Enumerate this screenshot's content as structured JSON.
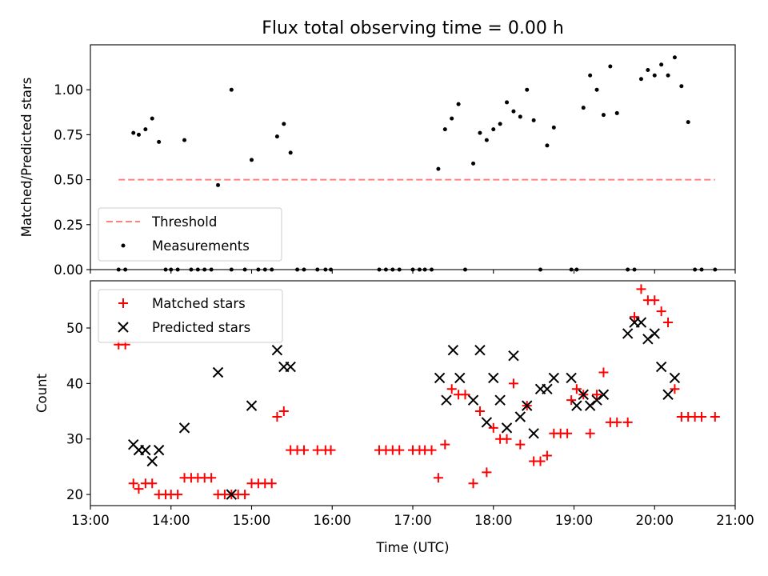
{
  "chart_data": [
    {
      "type": "scatter",
      "title": "Flux total observing time = 0.00 h",
      "xlabel": "",
      "ylabel": "Matched/Predicted stars",
      "xlim": [
        "13:00",
        "21:00"
      ],
      "ylim": [
        0,
        1.25
      ],
      "yticks": [
        "0.00",
        "0.25",
        "0.50",
        "0.75",
        "1.00"
      ],
      "ytick_values": [
        0,
        0.25,
        0.5,
        0.75,
        1.0
      ],
      "xticks": [
        "13:00",
        "14:00",
        "15:00",
        "16:00",
        "17:00",
        "18:00",
        "19:00",
        "20:00",
        "21:00"
      ],
      "show_xtick_labels": false,
      "grid": false,
      "legend": "lower-left",
      "threshold": {
        "name": "Threshold",
        "value": 0.5,
        "x": [
          "13:21",
          "20:45"
        ],
        "color": "#ff8080"
      },
      "series": [
        {
          "name": "Measurements",
          "marker": "dot",
          "color": "#000000",
          "x": [
            "13:32",
            "13:36",
            "13:41",
            "13:46",
            "13:51",
            "14:10",
            "14:35",
            "14:45",
            "15:00",
            "15:19",
            "15:24",
            "15:29",
            "13:21",
            "13:26",
            "13:56",
            "14:00",
            "14:05",
            "14:15",
            "14:20",
            "14:25",
            "14:30",
            "14:45",
            "14:55",
            "15:05",
            "15:10",
            "15:15",
            "15:34",
            "15:39",
            "15:49",
            "15:55",
            "15:59",
            "16:35",
            "16:40",
            "16:45",
            "16:50",
            "17:00",
            "17:05",
            "17:09",
            "17:14",
            "17:19",
            "17:24",
            "17:29",
            "17:34",
            "17:39",
            "17:45",
            "17:50",
            "17:55",
            "18:00",
            "18:05",
            "18:10",
            "18:15",
            "18:20",
            "18:25",
            "18:30",
            "18:35",
            "18:40",
            "18:45",
            "18:58",
            "19:02",
            "19:07",
            "19:12",
            "19:17",
            "19:22",
            "19:27",
            "19:32",
            "19:40",
            "19:45",
            "19:50",
            "19:55",
            "20:00",
            "20:05",
            "20:10",
            "20:15",
            "20:20",
            "20:25",
            "20:30",
            "20:35",
            "20:45"
          ],
          "y": [
            0.76,
            0.75,
            0.78,
            0.84,
            0.71,
            0.72,
            0.47,
            1.0,
            0.61,
            0.74,
            0.81,
            0.65,
            0,
            0,
            0,
            0,
            0,
            0,
            0,
            0,
            0,
            0,
            0,
            0,
            0,
            0,
            0,
            0,
            0,
            0,
            0,
            0,
            0,
            0,
            0,
            0,
            0,
            0,
            0,
            0.56,
            0.78,
            0.84,
            0.92,
            0,
            0.59,
            0.76,
            0.72,
            0.78,
            0.81,
            0.93,
            0.88,
            0.85,
            1.0,
            0.83,
            0,
            0.69,
            0.79,
            0,
            0,
            0.9,
            1.08,
            1.0,
            0.86,
            1.13,
            0.87,
            0,
            0,
            1.06,
            1.11,
            1.08,
            1.14,
            1.08,
            1.18,
            1.02,
            0.82,
            0,
            0,
            0
          ]
        }
      ]
    },
    {
      "type": "scatter",
      "title": "",
      "xlabel": "Time (UTC)",
      "ylabel": "Count",
      "xlim": [
        "13:00",
        "21:00"
      ],
      "ylim": [
        18,
        58.5
      ],
      "yticks": [
        "20",
        "30",
        "40",
        "50"
      ],
      "ytick_values": [
        20,
        30,
        40,
        50
      ],
      "xticks": [
        "13:00",
        "14:00",
        "15:00",
        "16:00",
        "17:00",
        "18:00",
        "19:00",
        "20:00",
        "21:00"
      ],
      "show_xtick_labels": true,
      "grid": false,
      "legend": "top-left",
      "series": [
        {
          "name": "Matched stars",
          "marker": "plus",
          "color": "#ff0000",
          "x": [
            "13:21",
            "13:26",
            "13:32",
            "13:36",
            "13:41",
            "13:46",
            "13:51",
            "13:56",
            "14:00",
            "14:05",
            "14:10",
            "14:15",
            "14:20",
            "14:25",
            "14:30",
            "14:35",
            "14:40",
            "14:45",
            "14:50",
            "14:55",
            "15:00",
            "15:05",
            "15:10",
            "15:15",
            "15:19",
            "15:24",
            "15:29",
            "15:34",
            "15:39",
            "15:49",
            "15:55",
            "15:59",
            "16:35",
            "16:40",
            "16:45",
            "16:50",
            "17:00",
            "17:05",
            "17:09",
            "17:14",
            "17:19",
            "17:24",
            "17:29",
            "17:34",
            "17:39",
            "17:45",
            "17:50",
            "17:55",
            "18:00",
            "18:05",
            "18:10",
            "18:15",
            "18:20",
            "18:25",
            "18:30",
            "18:35",
            "18:40",
            "18:45",
            "18:50",
            "18:55",
            "18:58",
            "19:02",
            "19:07",
            "19:12",
            "19:17",
            "19:22",
            "19:27",
            "19:32",
            "19:40",
            "19:45",
            "19:50",
            "19:55",
            "20:00",
            "20:05",
            "20:10",
            "20:15",
            "20:20",
            "20:25",
            "20:30",
            "20:35",
            "20:45"
          ],
          "y": [
            47,
            47,
            22,
            21,
            22,
            22,
            20,
            20,
            20,
            20,
            23,
            23,
            23,
            23,
            23,
            20,
            20,
            20,
            20,
            20,
            22,
            22,
            22,
            22,
            34,
            35,
            28,
            28,
            28,
            28,
            28,
            28,
            28,
            28,
            28,
            28,
            28,
            28,
            28,
            28,
            23,
            29,
            39,
            38,
            38,
            22,
            35,
            24,
            32,
            30,
            30,
            40,
            29,
            36,
            26,
            26,
            27,
            31,
            31,
            31,
            37,
            39,
            38,
            31,
            38,
            42,
            33,
            33,
            33,
            52,
            57,
            55,
            55,
            53,
            51,
            39,
            34,
            34,
            34,
            34,
            34
          ]
        },
        {
          "name": "Predicted stars",
          "marker": "x",
          "color": "#000000",
          "x": [
            "13:32",
            "13:36",
            "13:41",
            "13:46",
            "13:51",
            "14:10",
            "14:35",
            "14:45",
            "15:00",
            "15:19",
            "15:24",
            "15:29",
            "17:20",
            "17:25",
            "17:30",
            "17:35",
            "17:45",
            "17:50",
            "17:55",
            "18:00",
            "18:05",
            "18:10",
            "18:15",
            "18:20",
            "18:25",
            "18:30",
            "18:35",
            "18:40",
            "18:45",
            "18:58",
            "19:02",
            "19:07",
            "19:12",
            "19:17",
            "19:22",
            "19:40",
            "19:45",
            "19:50",
            "19:55",
            "20:00",
            "20:05",
            "20:10",
            "20:15"
          ],
          "y": [
            29,
            28,
            28,
            26,
            28,
            32,
            42,
            20,
            36,
            46,
            43,
            43,
            41,
            37,
            46,
            41,
            37,
            46,
            33,
            41,
            37,
            32,
            45,
            34,
            36,
            31,
            39,
            39,
            41,
            41,
            36,
            38,
            36,
            37,
            38,
            49,
            51,
            51,
            48,
            49,
            43,
            38,
            41
          ]
        }
      ]
    }
  ]
}
